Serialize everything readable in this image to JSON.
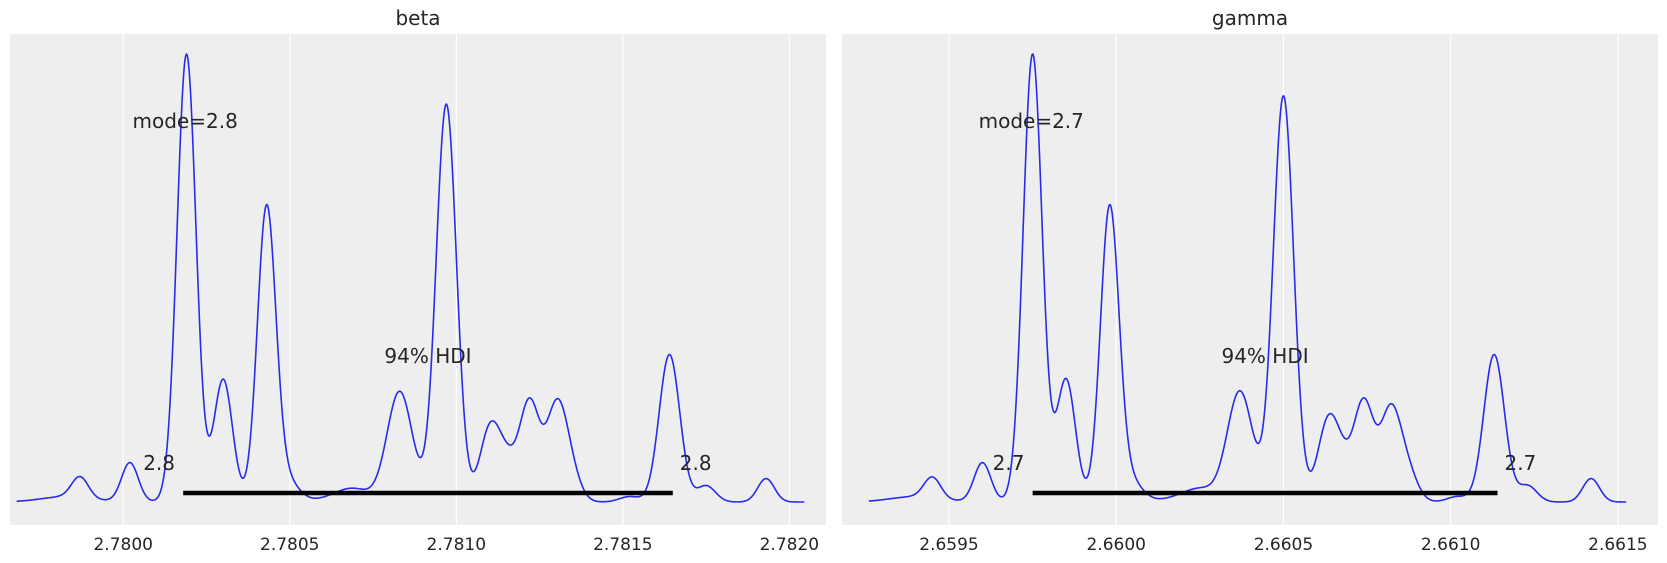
{
  "chart_data": [
    {
      "type": "line",
      "title": "beta",
      "xlabel": "",
      "ylabel": "",
      "xlim": [
        2.77966,
        2.78211
      ],
      "xticks": [
        2.78,
        2.7805,
        2.781,
        2.7815,
        2.782
      ],
      "xtick_labels": [
        "2.7800",
        "2.7805",
        "2.7810",
        "2.7815",
        "2.7820"
      ],
      "yaxis_visible": false,
      "grid": true,
      "line_color": "#2a2aeb",
      "background_color": "#eeeeee",
      "kde_range": [
        2.77968,
        2.782045
      ],
      "kde_peaks": [
        {
          "x": 2.77983,
          "h": 0.012,
          "w": 7.5e-05
        },
        {
          "x": 2.77987,
          "h": 0.046,
          "w": 2.5e-05
        },
        {
          "x": 2.78002,
          "h": 0.087,
          "w": 2.5e-05
        },
        {
          "x": 2.78019,
          "h": 0.993,
          "w": 2.85e-05
        },
        {
          "x": 2.7803,
          "h": 0.272,
          "w": 2.8e-05
        },
        {
          "x": 2.78043,
          "h": 0.642,
          "w": 2.75e-05
        },
        {
          "x": 2.78047,
          "h": 0.04,
          "w": 3e-05
        },
        {
          "x": 2.78051,
          "h": 0.025,
          "w": 3e-05
        },
        {
          "x": 2.78061,
          "h": 0.005,
          "w": 5e-05
        },
        {
          "x": 2.78069,
          "h": 0.029,
          "w": 5e-05
        },
        {
          "x": 2.78083,
          "h": 0.245,
          "w": 3.8e-05
        },
        {
          "x": 2.78097,
          "h": 0.882,
          "w": 3.05e-05
        },
        {
          "x": 2.7811,
          "h": 0.155,
          "w": 3e-05
        },
        {
          "x": 2.78115,
          "h": 0.08,
          "w": 3e-05
        },
        {
          "x": 2.78122,
          "h": 0.22,
          "w": 3e-05
        },
        {
          "x": 2.7813,
          "h": 0.195,
          "w": 3e-05
        },
        {
          "x": 2.78134,
          "h": 0.065,
          "w": 3e-05
        },
        {
          "x": 2.78152,
          "h": 0.012,
          "w": 3e-05
        },
        {
          "x": 2.78164,
          "h": 0.327,
          "w": 3.1e-05
        },
        {
          "x": 2.78175,
          "h": 0.036,
          "w": 2.8e-05
        },
        {
          "x": 2.78193,
          "h": 0.052,
          "w": 2.5e-05
        }
      ],
      "hdi": {
        "label": "94% HDI",
        "lower": 2.78018,
        "upper": 2.78165,
        "lower_label": "2.8",
        "upper_label": "2.8"
      },
      "mode": {
        "label": "mode=2.8",
        "x": 2.78019
      }
    },
    {
      "type": "line",
      "title": "gamma",
      "xlabel": "",
      "ylabel": "",
      "xlim": [
        2.65918,
        2.66162
      ],
      "xticks": [
        2.6595,
        2.66,
        2.6605,
        2.661,
        2.6615
      ],
      "xtick_labels": [
        "2.6595",
        "2.6600",
        "2.6605",
        "2.6610",
        "2.6615"
      ],
      "yaxis_visible": false,
      "grid": true,
      "line_color": "#2a2aeb",
      "background_color": "#eeeeee",
      "kde_range": [
        2.65926,
        2.661525
      ],
      "kde_peaks": [
        {
          "x": 2.6594,
          "h": 0.012,
          "w": 7.5e-05
        },
        {
          "x": 2.65945,
          "h": 0.046,
          "w": 2.5e-05
        },
        {
          "x": 2.6596,
          "h": 0.087,
          "w": 2.5e-05
        },
        {
          "x": 2.65975,
          "h": 0.993,
          "w": 2.85e-05
        },
        {
          "x": 2.65985,
          "h": 0.272,
          "w": 2.8e-05
        },
        {
          "x": 2.65998,
          "h": 0.642,
          "w": 2.75e-05
        },
        {
          "x": 2.66002,
          "h": 0.04,
          "w": 3e-05
        },
        {
          "x": 2.66006,
          "h": 0.025,
          "w": 3e-05
        },
        {
          "x": 2.66016,
          "h": 0.005,
          "w": 5e-05
        },
        {
          "x": 2.66025,
          "h": 0.029,
          "w": 5e-05
        },
        {
          "x": 2.66037,
          "h": 0.245,
          "w": 3.8e-05
        },
        {
          "x": 2.6605,
          "h": 0.9,
          "w": 3.05e-05
        },
        {
          "x": 2.66063,
          "h": 0.155,
          "w": 3e-05
        },
        {
          "x": 2.66067,
          "h": 0.08,
          "w": 3e-05
        },
        {
          "x": 2.66074,
          "h": 0.22,
          "w": 3e-05
        },
        {
          "x": 2.66082,
          "h": 0.195,
          "w": 3e-05
        },
        {
          "x": 2.66087,
          "h": 0.065,
          "w": 3e-05
        },
        {
          "x": 2.66102,
          "h": 0.012,
          "w": 3e-05
        },
        {
          "x": 2.66113,
          "h": 0.327,
          "w": 3.1e-05
        },
        {
          "x": 2.66123,
          "h": 0.036,
          "w": 2.8e-05
        },
        {
          "x": 2.66142,
          "h": 0.052,
          "w": 2.5e-05
        }
      ],
      "hdi": {
        "label": "94% HDI",
        "lower": 2.65975,
        "upper": 2.66114,
        "lower_label": "2.7",
        "upper_label": "2.7"
      },
      "mode": {
        "label": "mode=2.7",
        "x": 2.65975
      }
    }
  ]
}
